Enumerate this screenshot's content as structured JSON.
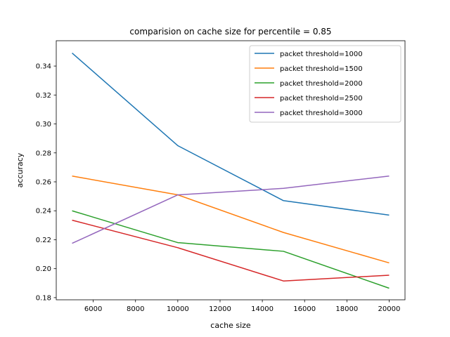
{
  "chart_data": {
    "type": "line",
    "title": "comparision on cache size for percentile = 0.85",
    "xlabel": "cache size",
    "ylabel": "accuracy",
    "x": [
      5000,
      10000,
      15000,
      20000
    ],
    "xlim": [
      4250,
      20750
    ],
    "ylim": [
      0.1785,
      0.3575
    ],
    "xticks": [
      6000,
      8000,
      10000,
      12000,
      14000,
      16000,
      18000,
      20000
    ],
    "yticks": [
      0.18,
      0.2,
      0.22,
      0.24,
      0.26,
      0.28,
      0.3,
      0.32,
      0.34
    ],
    "ytick_labels": [
      "0.18",
      "0.20",
      "0.22",
      "0.24",
      "0.26",
      "0.28",
      "0.30",
      "0.32",
      "0.34"
    ],
    "grid": false,
    "legend_position": "top-right",
    "series": [
      {
        "name": "packet threshold=1000",
        "color": "#1f77b4",
        "values": [
          0.349,
          0.285,
          0.247,
          0.237
        ]
      },
      {
        "name": "packet threshold=1500",
        "color": "#ff7f0e",
        "values": [
          0.264,
          0.251,
          0.225,
          0.204
        ]
      },
      {
        "name": "packet threshold=2000",
        "color": "#2ca02c",
        "values": [
          0.24,
          0.218,
          0.212,
          0.1865
        ]
      },
      {
        "name": "packet threshold=2500",
        "color": "#d62728",
        "values": [
          0.2335,
          0.2145,
          0.1915,
          0.1955
        ]
      },
      {
        "name": "packet threshold=3000",
        "color": "#9467bd",
        "values": [
          0.2175,
          0.251,
          0.2555,
          0.264
        ]
      }
    ]
  }
}
